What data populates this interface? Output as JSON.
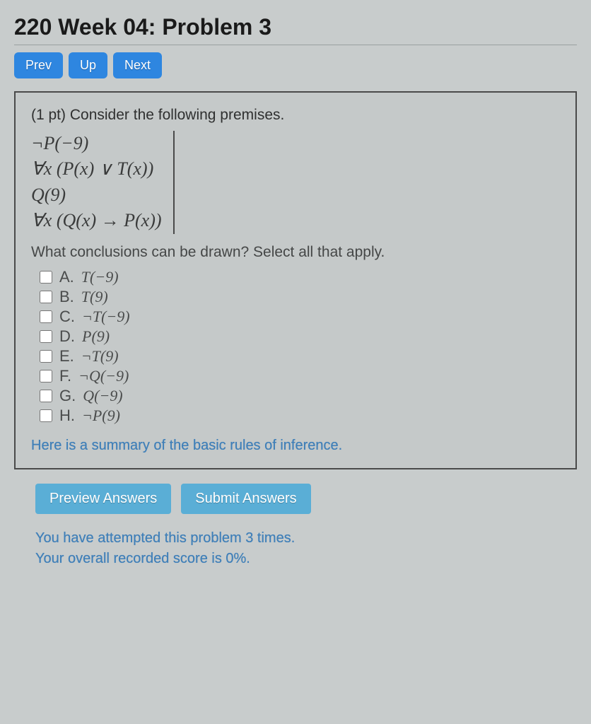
{
  "header": {
    "title": "220 Week 04: Problem 3"
  },
  "nav": {
    "prev": "Prev",
    "up": "Up",
    "next": "Next"
  },
  "problem": {
    "points_prefix": "(1 pt) ",
    "intro": "Consider the following premises.",
    "premises": [
      "¬P(−9)",
      "∀x (P(x) ∨ T(x))",
      "Q(9)",
      "∀x (Q(x) → P(x))"
    ],
    "question": "What conclusions can be drawn? Select all that apply.",
    "options": [
      {
        "letter": "A.",
        "math": "T(−9)"
      },
      {
        "letter": "B.",
        "math": "T(9)"
      },
      {
        "letter": "C.",
        "math": "¬T(−9)"
      },
      {
        "letter": "D.",
        "math": "P(9)"
      },
      {
        "letter": "E.",
        "math": "¬T(9)"
      },
      {
        "letter": "F.",
        "math": "¬Q(−9)"
      },
      {
        "letter": "G.",
        "math": "Q(−9)"
      },
      {
        "letter": "H.",
        "math": "¬P(9)"
      }
    ],
    "summary_link": "Here is a summary of the basic rules of inference."
  },
  "actions": {
    "preview": "Preview Answers",
    "submit": "Submit Answers"
  },
  "status": {
    "line1": "You have attempted this problem 3 times.",
    "line2": "Your overall recorded score is 0%."
  },
  "colors": {
    "page_bg": "#c8cccc",
    "nav_btn_bg": "#2e86e0",
    "wide_btn_bg": "#5aaed6",
    "link_color": "#3f7fb8",
    "border_color": "#4a4a4a",
    "text_color": "#2a2a2a"
  }
}
